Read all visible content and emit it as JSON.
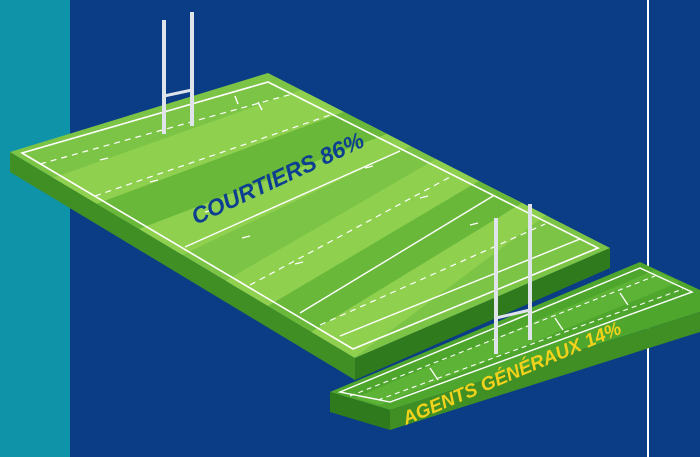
{
  "colors": {
    "background": "#0b3c86",
    "teal_band": "#0f93a8",
    "divider": "#ffffff",
    "turf_light": "#8fd14f",
    "turf_dark": "#6ab83a",
    "turf_side": "#3f8f25",
    "post": "#dfe3ea",
    "label_main": "#0c3f8f",
    "label_secondary": "#f2d21b"
  },
  "fields": [
    {
      "name": "Courtiers",
      "label": "COURTIERS 86%",
      "value": 86,
      "unit": "%"
    },
    {
      "name": "Agents généraux",
      "label": "AGENTS GÉNÉRAUX 14%",
      "value": 14,
      "unit": "%"
    }
  ]
}
